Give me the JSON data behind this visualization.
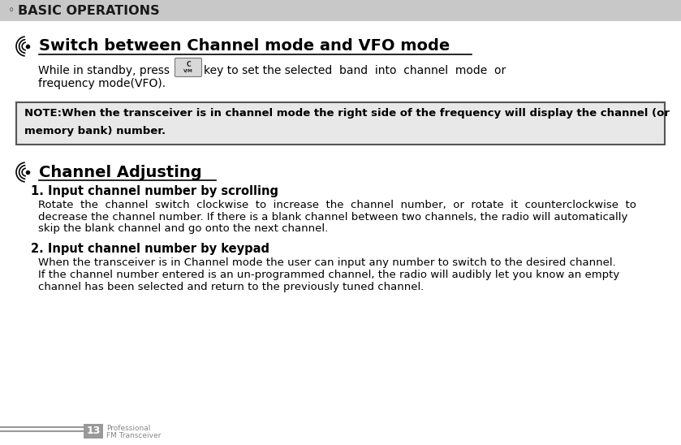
{
  "header_text": "BASIC OPERATIONS",
  "header_bullet": "◦",
  "header_bg": "#c8c8c8",
  "header_text_color": "#1a1a1a",
  "page_bg": "#ffffff",
  "section1_title": "Switch between Channel mode and VFO mode",
  "section1_body2": "frequency mode(VFO).",
  "note_line1": "NOTE:When the transceiver is in channel mode the right side of the frequency will display the channel (or",
  "note_line2": "memory bank) number.",
  "note_bg": "#e8e8e8",
  "note_border": "#555555",
  "section2_title": "Channel Adjusting",
  "sub1_title": "1. Input channel number by scrolling",
  "sub1_lines": [
    "Rotate  the  channel  switch  clockwise  to  increase  the  channel  number,  or  rotate  it  counterclockwise  to",
    "decrease the channel number. If there is a blank channel between two channels, the radio will automatically",
    "skip the blank channel and go onto the next channel."
  ],
  "sub2_title": "2. Input channel number by keypad",
  "sub2_lines": [
    "When the transceiver is in Channel mode the user can input any number to switch to the desired channel.",
    "If the channel number entered is an un-programmed channel, the radio will audibly let you know an empty",
    "channel has been selected and return to the previously tuned channel."
  ],
  "footer_page_num": "13",
  "footer_text1": "Professional",
  "footer_text2": "FM Transceiver",
  "footer_bg": "#999999",
  "footer_line_color": "#999999",
  "title_underline_color": "#000000",
  "body_text_color": "#000000"
}
